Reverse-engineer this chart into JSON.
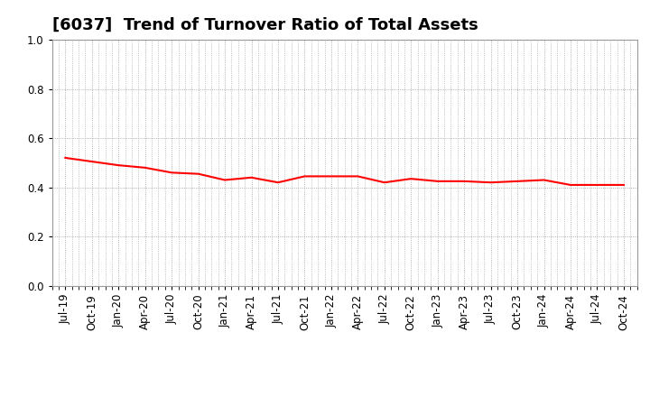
{
  "title": "[6037]  Trend of Turnover Ratio of Total Assets",
  "x_labels": [
    "Jul-19",
    "Oct-19",
    "Jan-20",
    "Apr-20",
    "Jul-20",
    "Oct-20",
    "Jan-21",
    "Apr-21",
    "Jul-21",
    "Oct-21",
    "Jan-22",
    "Apr-22",
    "Jul-22",
    "Oct-22",
    "Jan-23",
    "Apr-23",
    "Jul-23",
    "Oct-23",
    "Jan-24",
    "Apr-24",
    "Jul-24",
    "Oct-24"
  ],
  "y_values": [
    0.52,
    0.505,
    0.49,
    0.48,
    0.46,
    0.455,
    0.43,
    0.44,
    0.42,
    0.445,
    0.445,
    0.445,
    0.42,
    0.435,
    0.425,
    0.425,
    0.42,
    0.425,
    0.43,
    0.41,
    0.41,
    0.41
  ],
  "line_color": "#ff0000",
  "line_width": 1.5,
  "ylim": [
    0.0,
    1.0
  ],
  "yticks": [
    0.0,
    0.2,
    0.4,
    0.6,
    0.8,
    1.0
  ],
  "grid_color": "#999999",
  "background_color": "#ffffff",
  "title_fontsize": 13,
  "tick_fontsize": 8.5
}
